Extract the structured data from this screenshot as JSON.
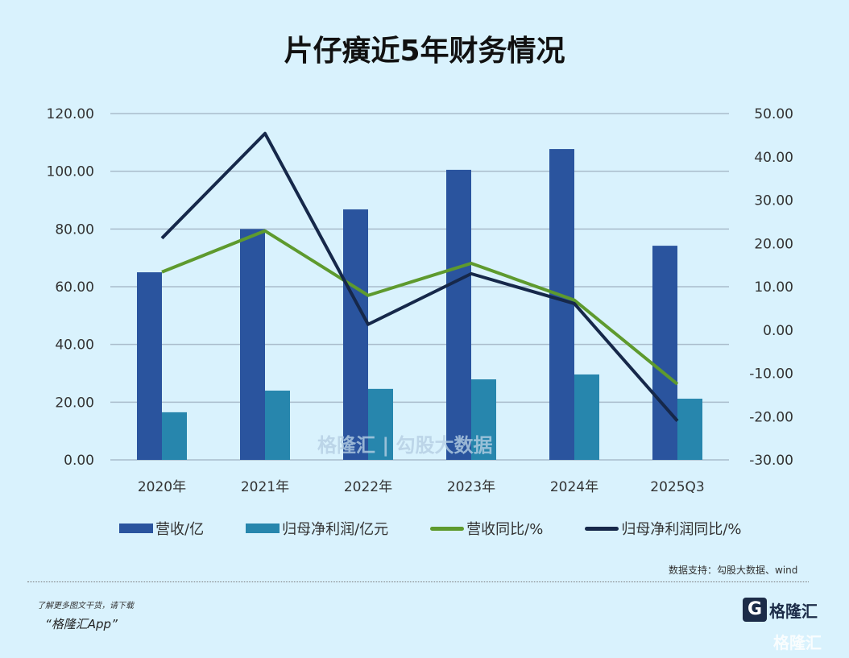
{
  "title": "片仔癀近5年财务情况",
  "chart_data": {
    "type": "bar+line",
    "title": "片仔癀近5年财务情况",
    "categories": [
      "2020年",
      "2021年",
      "2022年",
      "2023年",
      "2024年",
      "2025Q3"
    ],
    "left_axis": {
      "range": [
        0,
        120
      ],
      "ticks": [
        "0.00",
        "20.00",
        "40.00",
        "60.00",
        "80.00",
        "100.00",
        "120.00"
      ]
    },
    "right_axis": {
      "range": [
        -30,
        50
      ],
      "ticks": [
        "-30.00",
        "-20.00",
        "-10.00",
        "0.00",
        "10.00",
        "20.00",
        "30.00",
        "40.00",
        "50.00"
      ]
    },
    "grid": true,
    "legend_position": "bottom",
    "series": [
      {
        "name": "营收/亿",
        "type": "bar",
        "axis": "left",
        "color": "#2a549e",
        "values": [
          65.0,
          80.0,
          86.8,
          100.5,
          107.7,
          74.2
        ]
      },
      {
        "name": "归母净利润/亿元",
        "type": "bar",
        "axis": "left",
        "color": "#2786ad",
        "values": [
          16.5,
          24.0,
          24.6,
          27.9,
          29.6,
          21.2
        ]
      },
      {
        "name": "营收同比/%",
        "type": "line",
        "axis": "right",
        "color": "#5e9a2e",
        "values": [
          13.4,
          22.9,
          8.0,
          15.4,
          6.9,
          -12.5
        ]
      },
      {
        "name": "归母净利润同比/%",
        "type": "line",
        "axis": "right",
        "color": "#16284a",
        "values": [
          21.2,
          45.4,
          1.3,
          13.0,
          6.1,
          -21.0
        ]
      }
    ]
  },
  "source": "数据支持：勾股大数据、wind",
  "promo": {
    "line1": "了解更多图文干货，请下载",
    "line2": "“格隆汇App”"
  },
  "logo": {
    "text": "格隆汇",
    "mark": "G"
  },
  "watermark": "格隆汇 | 勾股大数据"
}
